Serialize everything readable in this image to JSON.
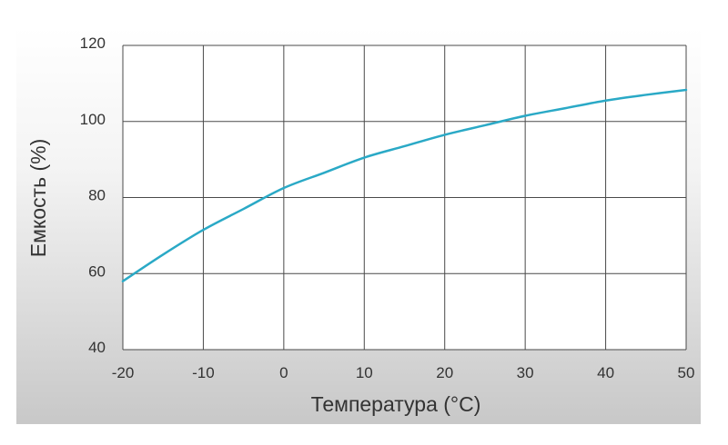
{
  "chart_data": {
    "type": "line",
    "title": "",
    "xlabel": "Температура (°C)",
    "ylabel": "Емкость (%)",
    "xlim": [
      -20,
      50
    ],
    "ylim": [
      40,
      120
    ],
    "grid": true,
    "x_ticks": [
      "-20",
      "-10",
      "0",
      "10",
      "20",
      "30",
      "40",
      "50"
    ],
    "y_ticks": [
      "40",
      "60",
      "80",
      "100",
      "120"
    ],
    "series": [
      {
        "color": "#2aa9c6",
        "x": [
          -20,
          -15,
          -10,
          -5,
          0,
          5,
          10,
          15,
          20,
          25,
          30,
          35,
          40,
          45,
          50
        ],
        "y": [
          58,
          65,
          71.5,
          77,
          82.5,
          86.5,
          90.5,
          93.5,
          96.5,
          99,
          101.5,
          103.5,
          105.5,
          107,
          108.3
        ]
      }
    ]
  }
}
